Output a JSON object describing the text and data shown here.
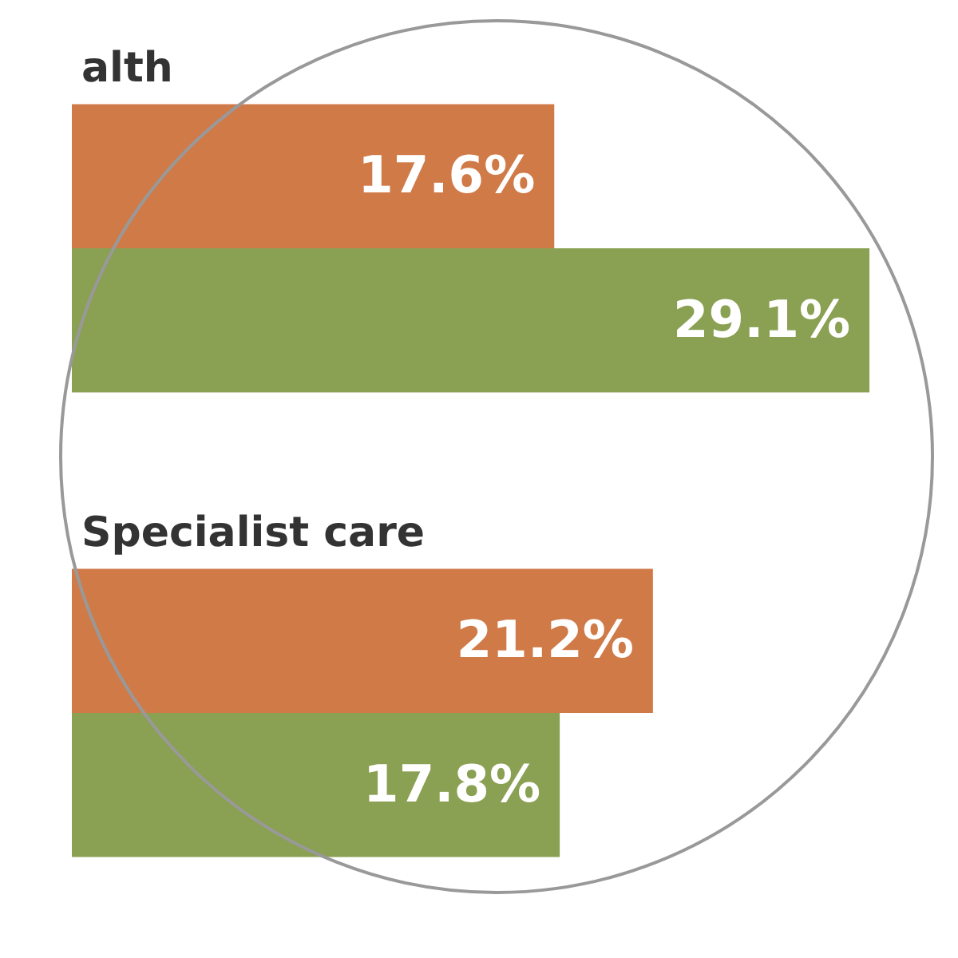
{
  "chart_data": {
    "type": "bar",
    "orientation": "horizontal",
    "categories": [
      "alth",
      "Specialist care"
    ],
    "series": [
      {
        "color": "#d07a48",
        "values": [
          17.6,
          21.2
        ],
        "value_labels": [
          "17.6%",
          "21.2%"
        ]
      },
      {
        "color": "#8aa052",
        "values": [
          29.1,
          17.8
        ],
        "value_labels": [
          "29.1%",
          "17.8%"
        ]
      }
    ],
    "legend": false,
    "tick_labels": false
  }
}
